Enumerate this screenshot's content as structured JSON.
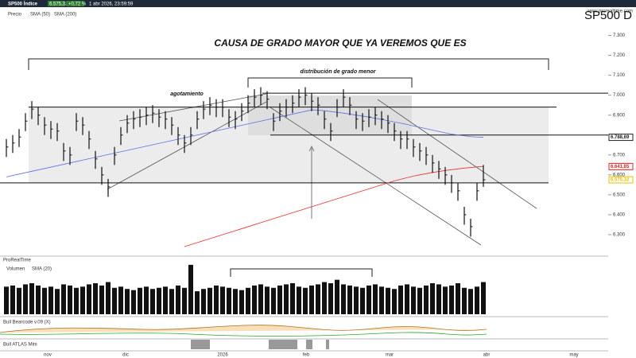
{
  "header": {
    "symbol": "SP500 Índice",
    "price": "6.575,32",
    "change": "+0,72 %",
    "date": "1 abr 2026, 23:59:59",
    "brand": "www.prorealtime.com",
    "legend": [
      "Precio",
      "SMA (50)",
      "SMA (200)"
    ],
    "volume_legend": [
      "Volumen",
      "SMA (20)"
    ],
    "panel1": "ProRealTime",
    "panel2": "Bull Bearcode v.09 (X)",
    "panel3": "Bull ATLAS Mini"
  },
  "chart_data": {
    "type": "ohlc",
    "title": "CAUSA DE GRADO MAYOR QUE YA VEREMOS QUE ES",
    "ticker": "SP500  D",
    "annotations": [
      "distribución de grado menor",
      "agotamiento"
    ],
    "months": [
      "nov",
      "dic",
      "2026",
      "feb",
      "mar",
      "abr",
      "may"
    ],
    "ylim": [
      6200,
      7350
    ],
    "yticks": [
      {
        "value": 7300,
        "label": "7.300"
      },
      {
        "value": 7200,
        "label": "7.200"
      },
      {
        "value": 7100,
        "label": "7.100"
      },
      {
        "value": 7000,
        "label": "7.000"
      },
      {
        "value": 6900,
        "label": "6.900"
      },
      {
        "value": 6700,
        "label": "6.700"
      },
      {
        "value": 6600,
        "label": "6.600"
      },
      {
        "value": 6500,
        "label": "6.500"
      },
      {
        "value": 6400,
        "label": "6.400"
      },
      {
        "value": 6300,
        "label": "6.300"
      }
    ],
    "price_labels": [
      {
        "value": 6788.69,
        "label": "6.788,69",
        "color": "#222"
      },
      {
        "value": 6641.85,
        "label": "6.641,85",
        "color": "#e02020"
      },
      {
        "value": 6575.32,
        "label": "6.575,32",
        "color": "#e8c000"
      }
    ],
    "levels": [
      7010,
      6940,
      6800,
      6560
    ],
    "high": [
      6780,
      6800,
      6830,
      6910,
      6970,
      6940,
      6890,
      6870,
      6860,
      6760,
      6740,
      6910,
      6890,
      6820,
      6720,
      6640,
      6580,
      6740,
      6840,
      6900,
      6920,
      6930,
      6940,
      6950,
      6930,
      6920,
      6890,
      6840,
      6800,
      6840,
      6920,
      6970,
      6990,
      6980,
      6980,
      6930,
      6920,
      6960,
      7000,
      7030,
      7040,
      7020,
      6910,
      6960,
      6980,
      7000,
      7030,
      7040,
      7010,
      6990,
      6920,
      6860,
      6980,
      7030,
      6990,
      6920,
      6910,
      6930,
      6940,
      6920,
      6900,
      6860,
      6820,
      6820,
      6780,
      6760,
      6740,
      6700,
      6670,
      6640,
      6600,
      6560,
      6440,
      6380,
      6560,
      6650
    ],
    "low": [
      6690,
      6710,
      6740,
      6820,
      6880,
      6850,
      6800,
      6780,
      6770,
      6670,
      6650,
      6820,
      6800,
      6730,
      6630,
      6550,
      6490,
      6650,
      6750,
      6810,
      6830,
      6840,
      6850,
      6860,
      6840,
      6830,
      6800,
      6750,
      6710,
      6750,
      6830,
      6880,
      6900,
      6890,
      6890,
      6840,
      6830,
      6870,
      6910,
      6940,
      6950,
      6930,
      6820,
      6870,
      6890,
      6910,
      6940,
      6950,
      6920,
      6900,
      6830,
      6770,
      6890,
      6940,
      6900,
      6830,
      6820,
      6840,
      6850,
      6830,
      6810,
      6770,
      6730,
      6730,
      6690,
      6670,
      6650,
      6610,
      6580,
      6550,
      6510,
      6470,
      6350,
      6290,
      6470,
      6540
    ],
    "close": [
      6740,
      6760,
      6790,
      6870,
      6930,
      6900,
      6850,
      6830,
      6820,
      6720,
      6700,
      6870,
      6850,
      6780,
      6680,
      6600,
      6540,
      6700,
      6800,
      6860,
      6880,
      6890,
      6900,
      6910,
      6890,
      6880,
      6850,
      6800,
      6760,
      6800,
      6880,
      6930,
      6950,
      6940,
      6940,
      6890,
      6880,
      6920,
      6960,
      6990,
      7000,
      6980,
      6870,
      6920,
      6940,
      6960,
      6990,
      7000,
      6970,
      6950,
      6880,
      6820,
      6940,
      6990,
      6950,
      6880,
      6870,
      6890,
      6900,
      6880,
      6860,
      6820,
      6780,
      6780,
      6740,
      6720,
      6700,
      6660,
      6630,
      6600,
      6560,
      6520,
      6400,
      6340,
      6520,
      6575.32
    ],
    "series": [
      {
        "name": "SMA (50)",
        "color": "#6070e0",
        "values": [
          6590,
          6597,
          6604,
          6611,
          6618,
          6625,
          6632,
          6639,
          6646,
          6653,
          6660,
          6667,
          6674,
          6681,
          6688,
          6695,
          6702,
          6709,
          6716,
          6723,
          6730,
          6737,
          6744,
          6751,
          6758,
          6765,
          6772,
          6779,
          6786,
          6793,
          6800,
          6807,
          6814,
          6821,
          6828,
          6835,
          6842,
          6849,
          6856,
          6863,
          6870,
          6877,
          6884,
          6891,
          6898,
          6905,
          6912,
          6919,
          6926,
          6925,
          6922,
          6918,
          6914,
          6910,
          6905,
          6900,
          6895,
          6890,
          6884,
          6878,
          6872,
          6866,
          6860,
          6853,
          6846,
          6839,
          6832,
          6825,
          6818,
          6811,
          6805,
          6800,
          6796,
          6792,
          6790,
          6788.69
        ]
      },
      {
        "name": "SMA (200)",
        "color": "#e83030",
        "values": [
          null,
          null,
          null,
          null,
          null,
          null,
          null,
          null,
          null,
          null,
          null,
          null,
          null,
          null,
          null,
          null,
          null,
          null,
          null,
          null,
          null,
          null,
          null,
          null,
          null,
          null,
          null,
          null,
          6240,
          6250,
          6260,
          6270,
          6280,
          6290,
          6300,
          6310,
          6320,
          6330,
          6340,
          6350,
          6360,
          6370,
          6380,
          6390,
          6400,
          6410,
          6420,
          6430,
          6440,
          6450,
          6460,
          6470,
          6480,
          6490,
          6500,
          6510,
          6520,
          6530,
          6540,
          6550,
          6560,
          6570,
          6578,
          6586,
          6594,
          6600,
          6606,
          6612,
          6617,
          6622,
          6626,
          6630,
          6634,
          6637,
          6640,
          6641.85
        ]
      }
    ],
    "volume": {
      "ylim": [
        0,
        450
      ],
      "color": "#111",
      "values": [
        240,
        250,
        230,
        260,
        270,
        250,
        230,
        240,
        220,
        260,
        250,
        230,
        240,
        260,
        270,
        250,
        280,
        230,
        240,
        220,
        210,
        230,
        240,
        220,
        230,
        240,
        220,
        250,
        230,
        430,
        200,
        220,
        230,
        250,
        240,
        230,
        220,
        210,
        230,
        250,
        260,
        240,
        230,
        250,
        260,
        270,
        240,
        230,
        250,
        260,
        280,
        270,
        300,
        260,
        250,
        240,
        230,
        250,
        260,
        240,
        230,
        220,
        250,
        260,
        240,
        230,
        250,
        270,
        260,
        240,
        250,
        270,
        230,
        220,
        240,
        280
      ]
    }
  }
}
